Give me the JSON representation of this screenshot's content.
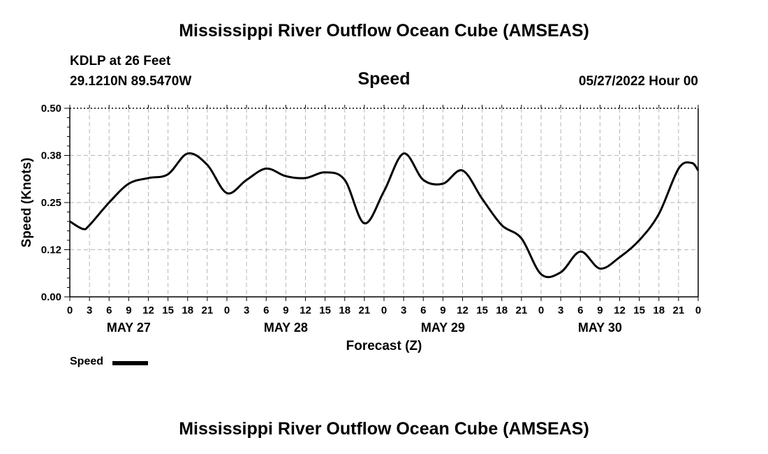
{
  "header": {
    "title": "Mississippi River Outflow Ocean Cube (AMSEAS)",
    "station": "KDLP at 26 Feet",
    "coords": "29.1210N  89.5470W",
    "variable": "Speed",
    "datetime": "05/27/2022 Hour 00"
  },
  "footer": {
    "title": "Mississippi River Outflow Ocean Cube (AMSEAS)"
  },
  "legend": {
    "label": "Speed"
  },
  "chart_data": {
    "type": "line",
    "title": "Speed",
    "xlabel": "Forecast (Z)",
    "ylabel": "Speed (Knots)",
    "xlim": [
      0,
      96
    ],
    "ylim": [
      0,
      0.5
    ],
    "grid": true,
    "yticks": [
      0.0,
      0.125,
      0.25,
      0.375,
      0.5
    ],
    "ytick_labels": [
      "0.00",
      "0.12",
      "0.25",
      "0.38",
      "0.50"
    ],
    "xtick_hours": [
      0,
      3,
      6,
      9,
      12,
      15,
      18,
      21,
      24,
      27,
      30,
      33,
      36,
      39,
      42,
      45,
      48,
      51,
      54,
      57,
      60,
      63,
      66,
      69,
      72,
      75,
      78,
      81,
      84,
      87,
      90,
      93,
      96
    ],
    "xtick_labels": [
      "0",
      "3",
      "6",
      "9",
      "12",
      "15",
      "18",
      "21",
      "0",
      "3",
      "6",
      "9",
      "12",
      "15",
      "18",
      "21",
      "0",
      "3",
      "6",
      "9",
      "12",
      "15",
      "18",
      "21",
      "0",
      "3",
      "6",
      "9",
      "12",
      "15",
      "18",
      "21",
      "0"
    ],
    "day_labels": [
      {
        "hour": 9,
        "label": "MAY 27"
      },
      {
        "hour": 33,
        "label": "MAY 28"
      },
      {
        "hour": 57,
        "label": "MAY 29"
      },
      {
        "hour": 81,
        "label": "MAY 30"
      }
    ],
    "series": [
      {
        "name": "Speed",
        "x": [
          0,
          2,
          3,
          6,
          9,
          12,
          15,
          18,
          21,
          24,
          27,
          30,
          33,
          36,
          39,
          42,
          45,
          48,
          51,
          54,
          57,
          60,
          63,
          66,
          69,
          72,
          75,
          78,
          81,
          84,
          87,
          90,
          93,
          95,
          96
        ],
        "y": [
          0.2,
          0.18,
          0.19,
          0.25,
          0.3,
          0.315,
          0.325,
          0.38,
          0.35,
          0.275,
          0.31,
          0.34,
          0.32,
          0.315,
          0.33,
          0.31,
          0.195,
          0.28,
          0.38,
          0.31,
          0.3,
          0.335,
          0.26,
          0.19,
          0.155,
          0.06,
          0.065,
          0.12,
          0.075,
          0.105,
          0.15,
          0.22,
          0.34,
          0.355,
          0.335
        ]
      }
    ]
  }
}
